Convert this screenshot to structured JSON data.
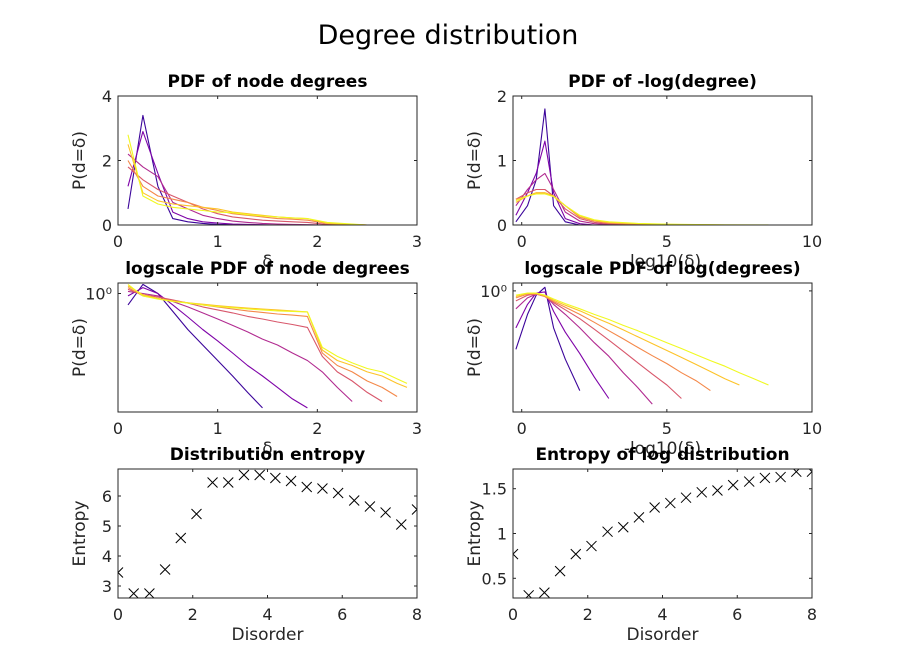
{
  "figure": {
    "title": "Degree distribution",
    "colormap": [
      "#3b049a",
      "#7e03a8",
      "#b12a90",
      "#d8576b",
      "#f48849",
      "#fdc328",
      "#f0f921"
    ]
  },
  "chart_data": [
    {
      "id": "pdf-degrees",
      "type": "line",
      "title": "PDF of node degrees",
      "xlabel": "δ",
      "ylabel": "P(d=δ)",
      "xlim": [
        0,
        3
      ],
      "ylim": [
        0,
        4
      ],
      "xticks": [
        0,
        1,
        2,
        3
      ],
      "yticks": [
        0,
        2,
        4
      ],
      "x": [
        0.1,
        0.25,
        0.4,
        0.55,
        0.7,
        0.85,
        1.0,
        1.15,
        1.3,
        1.45,
        1.6,
        1.75,
        1.9,
        2.1,
        2.5,
        2.9
      ],
      "series": [
        {
          "values": [
            0.5,
            3.4,
            1.2,
            0.2,
            0.1,
            0.05,
            0.02,
            0.01,
            0,
            0,
            0,
            0,
            0,
            0,
            0,
            0
          ]
        },
        {
          "values": [
            1.2,
            2.9,
            1.6,
            0.4,
            0.2,
            0.1,
            0.06,
            0.03,
            0.02,
            0.01,
            0,
            0,
            0,
            0,
            0,
            0
          ]
        },
        {
          "values": [
            2.2,
            1.8,
            1.5,
            0.7,
            0.5,
            0.3,
            0.2,
            0.12,
            0.08,
            0.05,
            0.03,
            0.02,
            0.01,
            0,
            0,
            0
          ]
        },
        {
          "values": [
            1.8,
            1.4,
            1.1,
            0.9,
            0.7,
            0.5,
            0.35,
            0.25,
            0.2,
            0.15,
            0.12,
            0.1,
            0.08,
            0.02,
            0,
            0
          ]
        },
        {
          "values": [
            2.0,
            1.2,
            0.9,
            0.8,
            0.7,
            0.55,
            0.45,
            0.35,
            0.3,
            0.25,
            0.2,
            0.18,
            0.15,
            0.05,
            0,
            0
          ]
        },
        {
          "values": [
            2.5,
            1.0,
            0.75,
            0.65,
            0.6,
            0.55,
            0.5,
            0.4,
            0.35,
            0.3,
            0.25,
            0.22,
            0.2,
            0.05,
            0,
            0
          ]
        },
        {
          "values": [
            2.8,
            0.9,
            0.65,
            0.55,
            0.5,
            0.45,
            0.4,
            0.38,
            0.32,
            0.28,
            0.25,
            0.22,
            0.2,
            0.08,
            0,
            0
          ]
        }
      ]
    },
    {
      "id": "pdf-log-degree",
      "type": "line",
      "title": "PDF of -log(degree)",
      "xlabel": "-log10(δ)",
      "ylabel": "P(d=δ)",
      "xlim": [
        -0.3,
        10
      ],
      "ylim": [
        0,
        2
      ],
      "xticks": [
        0,
        5,
        10
      ],
      "yticks": [
        0,
        1,
        2
      ],
      "x": [
        -0.2,
        0.2,
        0.5,
        0.8,
        1.1,
        1.5,
        2.0,
        2.5,
        3.0,
        4.0,
        5.0,
        6.0,
        7.0,
        8.5
      ],
      "series": [
        {
          "values": [
            0.05,
            0.3,
            0.7,
            1.8,
            0.3,
            0.05,
            0,
            0,
            0,
            0,
            0,
            0,
            0,
            0
          ]
        },
        {
          "values": [
            0.15,
            0.5,
            0.8,
            1.3,
            0.5,
            0.1,
            0.02,
            0,
            0,
            0,
            0,
            0,
            0,
            0
          ]
        },
        {
          "values": [
            0.3,
            0.55,
            0.7,
            0.8,
            0.55,
            0.2,
            0.06,
            0.02,
            0.01,
            0,
            0,
            0,
            0,
            0
          ]
        },
        {
          "values": [
            0.4,
            0.5,
            0.55,
            0.55,
            0.45,
            0.25,
            0.1,
            0.04,
            0.02,
            0.01,
            0,
            0,
            0,
            0
          ]
        },
        {
          "values": [
            0.4,
            0.45,
            0.5,
            0.5,
            0.45,
            0.3,
            0.12,
            0.06,
            0.03,
            0.01,
            0.005,
            0,
            0,
            0
          ]
        },
        {
          "values": [
            0.35,
            0.45,
            0.5,
            0.5,
            0.45,
            0.3,
            0.14,
            0.07,
            0.04,
            0.02,
            0.01,
            0.005,
            0,
            0
          ]
        },
        {
          "values": [
            0.38,
            0.45,
            0.48,
            0.48,
            0.44,
            0.3,
            0.15,
            0.08,
            0.05,
            0.025,
            0.012,
            0.006,
            0.003,
            0.001
          ]
        }
      ]
    },
    {
      "id": "logscale-pdf-degrees",
      "type": "line",
      "title": "logscale PDF of node degrees",
      "xlabel": "δ",
      "ylabel": "P(d=δ)",
      "yscale": "log",
      "xlim": [
        0,
        3
      ],
      "ylim": [
        0.005,
        1.6
      ],
      "xticks": [
        0,
        1,
        2,
        3
      ],
      "yticks": [
        1
      ],
      "ytick_labels": [
        "10⁰"
      ],
      "x": [
        0.1,
        0.25,
        0.4,
        0.55,
        0.7,
        0.85,
        1.0,
        1.15,
        1.3,
        1.45,
        1.6,
        1.75,
        1.9,
        2.05,
        2.2,
        2.35,
        2.5,
        2.65,
        2.8,
        2.9
      ],
      "series": [
        {
          "values": [
            0.6,
            1.5,
            1.0,
            0.45,
            0.2,
            0.1,
            0.05,
            0.025,
            0.012,
            0.006,
            null,
            null,
            null,
            null,
            null,
            null,
            null,
            null,
            null,
            null
          ]
        },
        {
          "values": [
            0.9,
            1.3,
            1.0,
            0.6,
            0.35,
            0.2,
            0.12,
            0.07,
            0.04,
            0.025,
            0.015,
            0.009,
            0.006,
            null,
            null,
            null,
            null,
            null,
            null,
            null
          ]
        },
        {
          "values": [
            1.1,
            1.0,
            0.9,
            0.7,
            0.55,
            0.42,
            0.32,
            0.24,
            0.18,
            0.13,
            0.1,
            0.07,
            0.05,
            0.03,
            0.015,
            0.008,
            null,
            null,
            null,
            null
          ]
        },
        {
          "values": [
            1.2,
            0.95,
            0.85,
            0.75,
            0.65,
            0.55,
            0.48,
            0.42,
            0.36,
            0.32,
            0.28,
            0.25,
            0.22,
            0.06,
            0.03,
            0.02,
            0.012,
            0.008,
            null,
            null
          ]
        },
        {
          "values": [
            1.3,
            0.9,
            0.8,
            0.72,
            0.66,
            0.6,
            0.55,
            0.5,
            0.46,
            0.43,
            0.4,
            0.38,
            0.36,
            0.07,
            0.04,
            0.03,
            0.02,
            0.015,
            0.01,
            null
          ]
        },
        {
          "values": [
            1.4,
            0.95,
            0.8,
            0.72,
            0.66,
            0.62,
            0.58,
            0.55,
            0.52,
            0.5,
            0.48,
            0.46,
            0.44,
            0.08,
            0.05,
            0.04,
            0.03,
            0.025,
            0.018,
            0.015
          ]
        },
        {
          "values": [
            1.5,
            0.9,
            0.78,
            0.7,
            0.65,
            0.6,
            0.56,
            0.53,
            0.5,
            0.48,
            0.46,
            0.45,
            0.44,
            0.09,
            0.06,
            0.045,
            0.035,
            0.03,
            0.022,
            0.018
          ]
        }
      ]
    },
    {
      "id": "logscale-pdf-log-degrees",
      "type": "line",
      "title": "logscale PDF of log(degrees)",
      "xlabel": "-log10(δ)",
      "ylabel": "P(d=δ)",
      "yscale": "log",
      "xlim": [
        -0.3,
        10
      ],
      "ylim": [
        0.002,
        1.5
      ],
      "xticks": [
        0,
        5,
        10
      ],
      "yticks": [
        1
      ],
      "ytick_labels": [
        "10⁰"
      ],
      "x": [
        -0.2,
        0.2,
        0.5,
        0.8,
        1.1,
        1.5,
        2.0,
        2.5,
        3.0,
        3.5,
        4.0,
        4.5,
        5.0,
        5.5,
        6.0,
        6.5,
        7.0,
        7.5,
        8.0,
        8.5
      ],
      "series": [
        {
          "values": [
            0.05,
            0.3,
            0.8,
            1.2,
            0.15,
            0.03,
            0.006,
            null,
            null,
            null,
            null,
            null,
            null,
            null,
            null,
            null,
            null,
            null,
            null,
            null
          ]
        },
        {
          "values": [
            0.15,
            0.5,
            0.9,
            0.95,
            0.35,
            0.12,
            0.04,
            0.012,
            0.004,
            null,
            null,
            null,
            null,
            null,
            null,
            null,
            null,
            null,
            null,
            null
          ]
        },
        {
          "values": [
            0.4,
            0.7,
            0.85,
            0.8,
            0.5,
            0.3,
            0.15,
            0.07,
            0.035,
            0.015,
            0.007,
            0.003,
            null,
            null,
            null,
            null,
            null,
            null,
            null,
            null
          ]
        },
        {
          "values": [
            0.6,
            0.8,
            0.85,
            0.75,
            0.55,
            0.38,
            0.24,
            0.14,
            0.08,
            0.045,
            0.025,
            0.014,
            0.008,
            0.004,
            null,
            null,
            null,
            null,
            null,
            null
          ]
        },
        {
          "values": [
            0.7,
            0.85,
            0.85,
            0.75,
            0.58,
            0.43,
            0.3,
            0.2,
            0.13,
            0.085,
            0.055,
            0.036,
            0.024,
            0.015,
            0.01,
            0.006,
            null,
            null,
            null,
            null
          ]
        },
        {
          "values": [
            0.75,
            0.88,
            0.88,
            0.78,
            0.62,
            0.48,
            0.36,
            0.26,
            0.19,
            0.135,
            0.095,
            0.067,
            0.047,
            0.033,
            0.023,
            0.016,
            0.011,
            0.008,
            null,
            null
          ]
        },
        {
          "values": [
            0.8,
            0.9,
            0.9,
            0.8,
            0.66,
            0.52,
            0.4,
            0.3,
            0.23,
            0.17,
            0.13,
            0.095,
            0.07,
            0.052,
            0.038,
            0.028,
            0.021,
            0.015,
            0.011,
            0.008
          ]
        }
      ]
    },
    {
      "id": "distribution-entropy",
      "type": "scatter",
      "marker": "x",
      "title": "Distribution entropy",
      "xlabel": "Disorder",
      "ylabel": "Entropy",
      "xlim": [
        0,
        8
      ],
      "ylim": [
        2.6,
        6.9
      ],
      "xticks": [
        0,
        2,
        4,
        6,
        8
      ],
      "yticks": [
        3,
        4,
        5,
        6
      ],
      "x": [
        0,
        0.42,
        0.84,
        1.26,
        1.68,
        2.1,
        2.53,
        2.95,
        3.37,
        3.79,
        4.21,
        4.63,
        5.05,
        5.47,
        5.89,
        6.32,
        6.74,
        7.16,
        7.58,
        8.0
      ],
      "y": [
        3.45,
        2.75,
        2.75,
        3.55,
        4.6,
        5.4,
        6.45,
        6.45,
        6.7,
        6.7,
        6.6,
        6.5,
        6.3,
        6.25,
        6.1,
        5.85,
        5.65,
        5.45,
        5.05,
        5.55
      ]
    },
    {
      "id": "entropy-log-distribution",
      "type": "scatter",
      "marker": "x",
      "title": "Entropy of log distribution",
      "xlabel": "Disorder",
      "ylabel": "Entropy",
      "xlim": [
        0,
        8
      ],
      "ylim": [
        0.28,
        1.72
      ],
      "xticks": [
        0,
        2,
        4,
        6,
        8
      ],
      "yticks": [
        0.5,
        1,
        1.5
      ],
      "x": [
        0,
        0.42,
        0.84,
        1.26,
        1.68,
        2.1,
        2.53,
        2.95,
        3.37,
        3.79,
        4.21,
        4.63,
        5.05,
        5.47,
        5.89,
        6.32,
        6.74,
        7.16,
        7.58,
        8.0
      ],
      "y": [
        0.77,
        0.31,
        0.34,
        0.58,
        0.77,
        0.86,
        1.02,
        1.07,
        1.18,
        1.29,
        1.34,
        1.4,
        1.46,
        1.48,
        1.54,
        1.58,
        1.62,
        1.63,
        1.69,
        1.69
      ]
    }
  ]
}
